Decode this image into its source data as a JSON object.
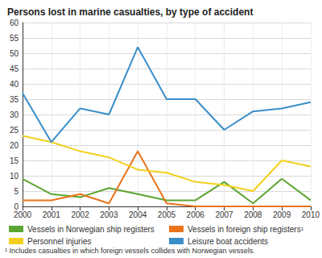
{
  "chart_data": {
    "type": "line",
    "title": "Persons lost in marine casualties, by type of accident",
    "categories": [
      "2000",
      "2001",
      "2002",
      "2003",
      "2004",
      "2005",
      "2006",
      "2007",
      "2008",
      "2009",
      "2010"
    ],
    "series": [
      {
        "name": "Vessels in Norwegian ship registers",
        "color": "#5ba532",
        "values": [
          9,
          4,
          3,
          6,
          4,
          2,
          2,
          8,
          1,
          9,
          2
        ]
      },
      {
        "name": "Vessels in foreign ship registers¹",
        "color": "#e8731a",
        "values": [
          2,
          2,
          4,
          1,
          18,
          1,
          0,
          0,
          0,
          0,
          0
        ]
      },
      {
        "name": "Personnel injuries",
        "color": "#f2cf1d",
        "values": [
          23,
          21,
          18,
          16,
          12,
          11,
          8,
          7,
          5,
          15,
          13
        ]
      },
      {
        "name": "Leisure boat accidents",
        "color": "#3a8ec8",
        "values": [
          37,
          21,
          32,
          30,
          52,
          35,
          35,
          25,
          31,
          32,
          34
        ]
      }
    ],
    "ylim": [
      0,
      60
    ],
    "yticks": [
      0,
      5,
      10,
      15,
      20,
      25,
      30,
      35,
      40,
      45,
      50,
      55,
      60
    ],
    "grid": true,
    "legend": "bottom",
    "annotations": [
      "¹ Includes casualties in which foreign vessels collides with Norwegian vessels."
    ]
  }
}
